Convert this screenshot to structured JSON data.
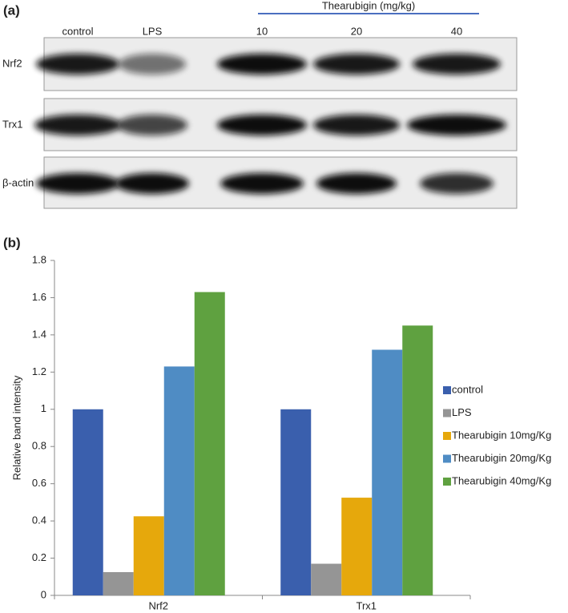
{
  "blot": {
    "label": "(a)",
    "treatment": "Thearubigin (mg/kg)",
    "lanes": [
      "control",
      "LPS",
      "10",
      "20",
      "40"
    ],
    "rows": [
      "Nrf2",
      "Trx1",
      "β-actin"
    ]
  },
  "chart_data": {
    "type": "bar",
    "label": "(b)",
    "y_label": "Relative band intensity",
    "categories": [
      "Nrf2",
      "Trx1"
    ],
    "series": [
      {
        "name": "control",
        "color": "#3a5fad",
        "values": [
          1,
          1
        ]
      },
      {
        "name": "LPS",
        "color": "#959595",
        "values": [
          0.125,
          0.17
        ]
      },
      {
        "name": "Thearubigin 10mg/Kg",
        "color": "#e6a80c",
        "values": [
          0.425,
          0.525
        ]
      },
      {
        "name": "Thearubigin 20mg/Kg",
        "color": "#4f8cc4",
        "values": [
          1.23,
          1.32
        ]
      },
      {
        "name": "Thearubigin 40mg/Kg",
        "color": "#5fa140",
        "values": [
          1.63,
          1.45
        ]
      }
    ],
    "ylim": [
      0,
      1.8
    ],
    "yticks": [
      0,
      0.2,
      0.4,
      0.6,
      0.8,
      1,
      1.2,
      1.4,
      1.6,
      1.8
    ],
    "legend": "right"
  }
}
